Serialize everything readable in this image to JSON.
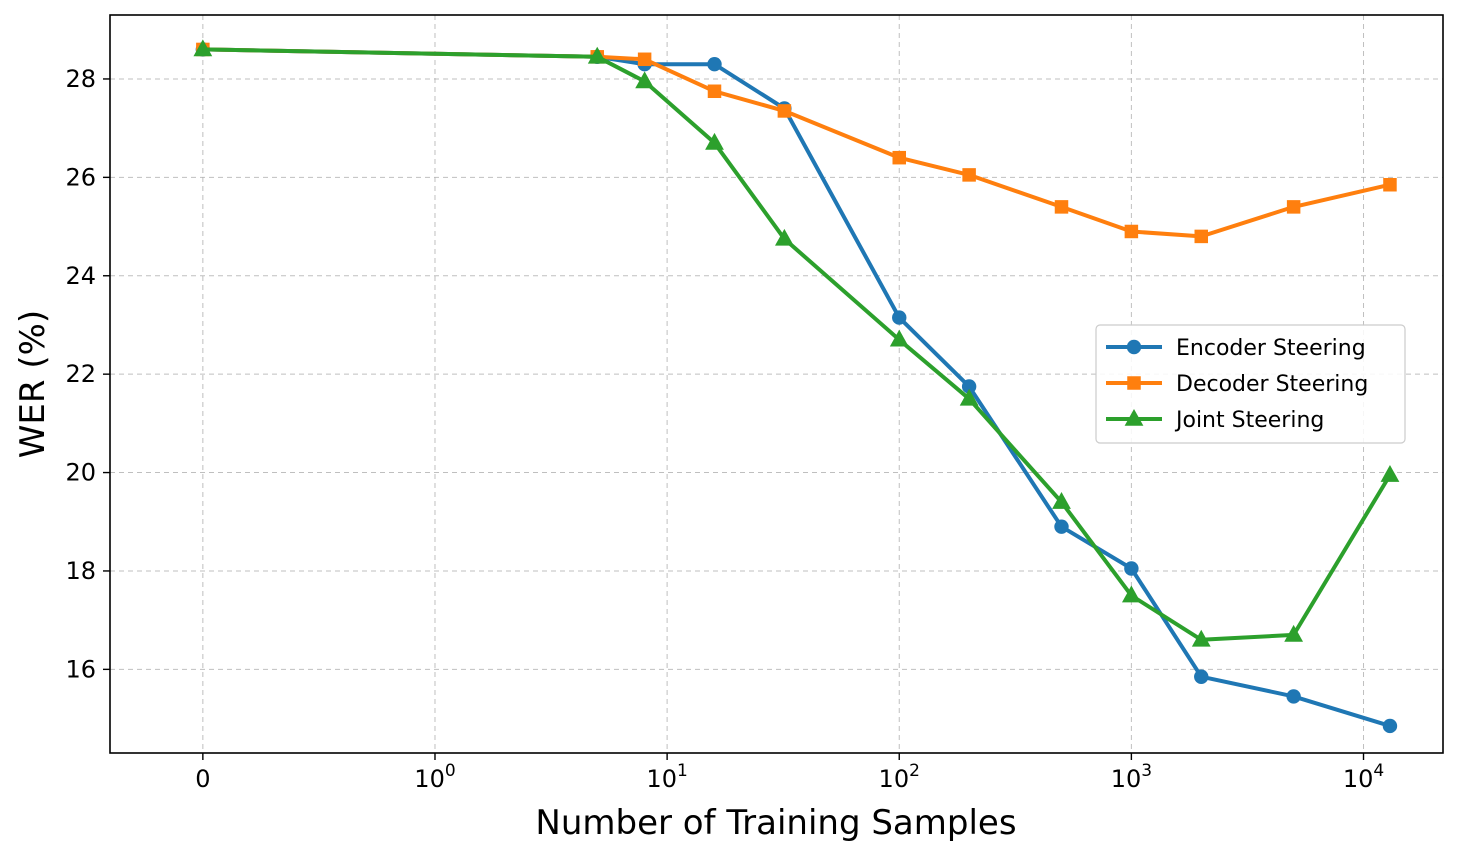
{
  "chart_data": {
    "type": "line",
    "title": "",
    "xlabel": "Number of Training Samples",
    "ylabel": "WER (%)",
    "x_scale": "symlog",
    "xlim": [
      -0.4,
      22000
    ],
    "ylim": [
      14.3,
      29.3
    ],
    "x_ticks": [
      {
        "value": 0,
        "base": "0",
        "exp": ""
      },
      {
        "value": 1,
        "base": "10",
        "exp": "0"
      },
      {
        "value": 10,
        "base": "10",
        "exp": "1"
      },
      {
        "value": 100,
        "base": "10",
        "exp": "2"
      },
      {
        "value": 1000,
        "base": "10",
        "exp": "3"
      },
      {
        "value": 10000,
        "base": "10",
        "exp": "4"
      }
    ],
    "y_ticks": [
      16,
      18,
      20,
      22,
      24,
      26,
      28
    ],
    "grid": true,
    "legend_position": "center-right",
    "x": [
      0,
      5,
      8,
      16,
      32,
      100,
      200,
      500,
      1000,
      2000,
      5000,
      13000
    ],
    "series": [
      {
        "name": "Encoder Steering",
        "color": "#1f77b4",
        "marker": "circle",
        "values": [
          28.6,
          28.45,
          28.3,
          28.3,
          27.4,
          23.15,
          21.75,
          18.9,
          18.05,
          15.85,
          15.45,
          14.85
        ]
      },
      {
        "name": "Decoder Steering",
        "color": "#ff7f0e",
        "marker": "square",
        "values": [
          28.6,
          28.45,
          28.4,
          27.75,
          27.35,
          26.4,
          26.05,
          25.4,
          24.9,
          24.8,
          25.4,
          25.85
        ]
      },
      {
        "name": "Joint Steering",
        "color": "#2ca02c",
        "marker": "triangle",
        "values": [
          28.6,
          28.45,
          27.95,
          26.7,
          24.75,
          22.7,
          21.5,
          19.4,
          17.5,
          16.6,
          16.7,
          19.95
        ]
      }
    ]
  }
}
